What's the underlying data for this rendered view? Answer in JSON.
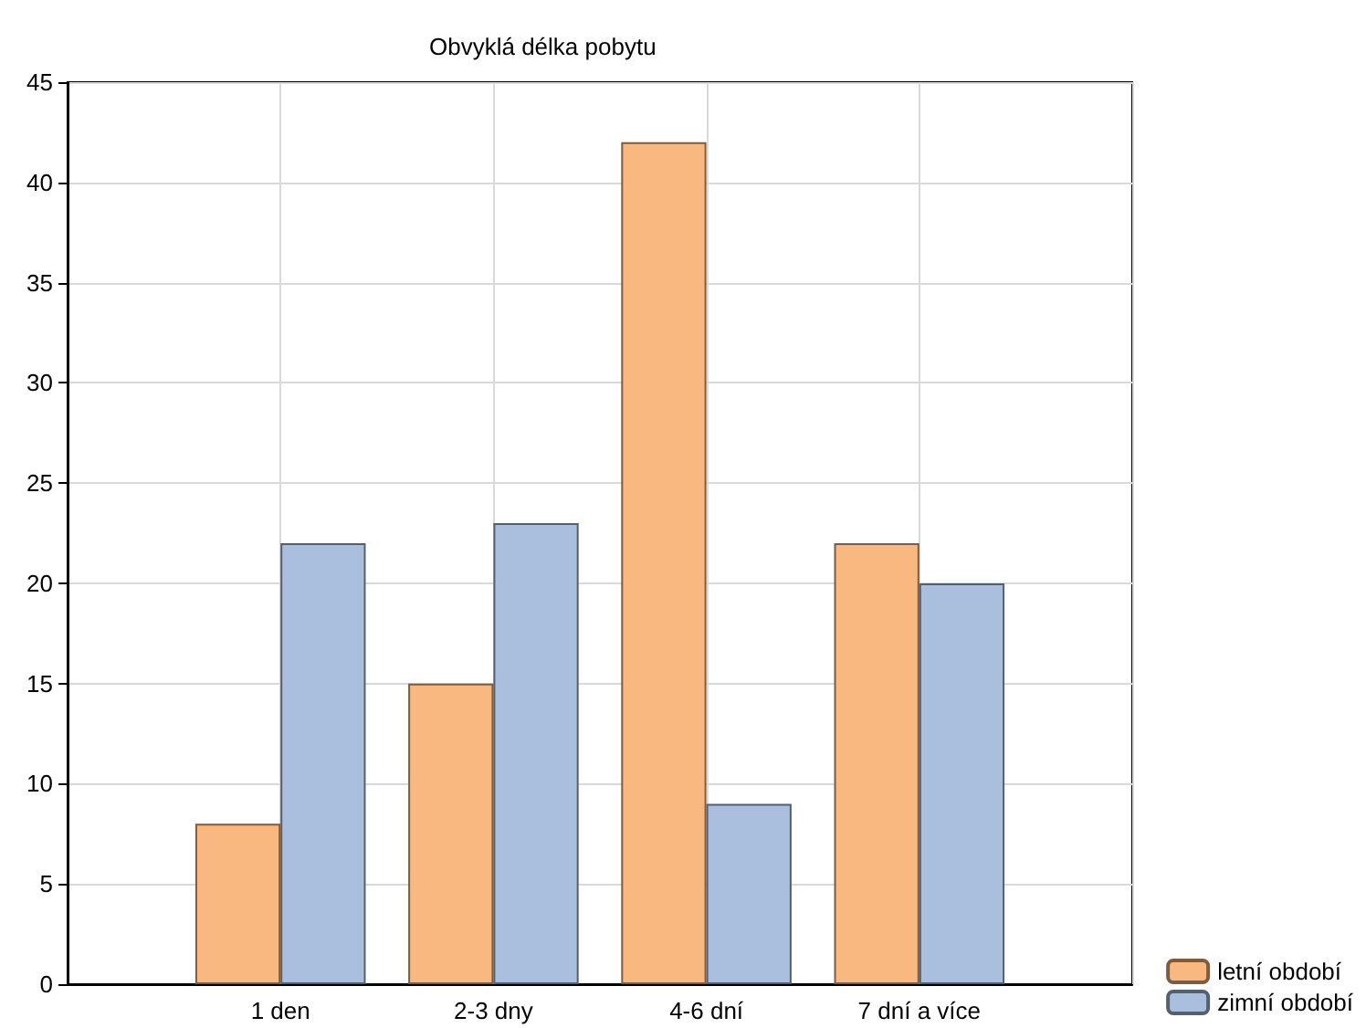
{
  "chart_data": {
    "type": "bar",
    "title": "Obvyklá délka pobytu",
    "categories": [
      "1 den",
      "2-3 dny",
      "4-6 dní",
      "7 dní a více"
    ],
    "series": [
      {
        "name": "letní období",
        "color": "#f9b880",
        "values": [
          8,
          15,
          42,
          22
        ]
      },
      {
        "name": "zimní období",
        "color": "#a9bfdd",
        "values": [
          22,
          23,
          9,
          20
        ]
      }
    ],
    "ylim": [
      0,
      45
    ],
    "yticks": [
      0,
      5,
      10,
      15,
      20,
      25,
      30,
      35,
      40,
      45
    ],
    "grid": true,
    "legend": "bottom right"
  }
}
